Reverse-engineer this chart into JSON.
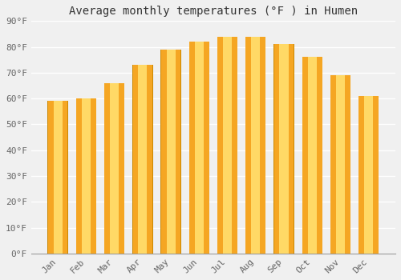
{
  "title": "Average monthly temperatures (°F ) in Humen",
  "months": [
    "Jan",
    "Feb",
    "Mar",
    "Apr",
    "May",
    "Jun",
    "Jul",
    "Aug",
    "Sep",
    "Oct",
    "Nov",
    "Dec"
  ],
  "values": [
    59,
    60,
    66,
    73,
    79,
    82,
    84,
    84,
    81,
    76,
    69,
    61
  ],
  "bar_color_center": "#FFD966",
  "bar_color_edge": "#F5A623",
  "bar_border_color": "#CC8800",
  "ylim": [
    0,
    90
  ],
  "yticks": [
    0,
    10,
    20,
    30,
    40,
    50,
    60,
    70,
    80,
    90
  ],
  "ytick_labels": [
    "0°F",
    "10°F",
    "20°F",
    "30°F",
    "40°F",
    "50°F",
    "60°F",
    "70°F",
    "80°F",
    "90°F"
  ],
  "background_color": "#f0f0f0",
  "grid_color": "#ffffff",
  "title_fontsize": 10,
  "tick_fontsize": 8,
  "tick_color": "#666666"
}
